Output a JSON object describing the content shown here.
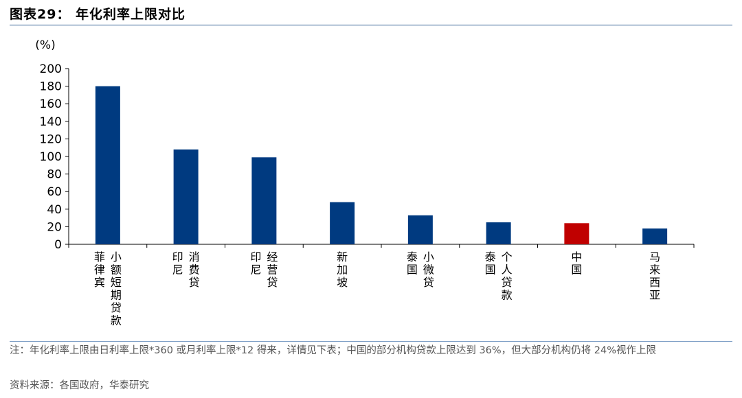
{
  "header": {
    "title": "图表29： 年化利率上限对比"
  },
  "chart_data": {
    "type": "bar",
    "title": "",
    "ylabel": "(%)",
    "xlabel": "",
    "ylim": [
      0,
      200
    ],
    "yticks": [
      0,
      20,
      40,
      60,
      80,
      100,
      120,
      140,
      160,
      180,
      200
    ],
    "grid": false,
    "categories": [
      [
        "小额短期贷款",
        "菲律宾"
      ],
      [
        "消费贷",
        "印尼"
      ],
      [
        "经营贷",
        "印尼"
      ],
      [
        "新加坡"
      ],
      [
        "小微贷",
        "泰国"
      ],
      [
        "个人贷款",
        "泰国"
      ],
      [
        "中国"
      ],
      [
        "马来西亚"
      ]
    ],
    "values": [
      180,
      108,
      99,
      48,
      33,
      25,
      24,
      18
    ],
    "colors": [
      "#003a80",
      "#003a80",
      "#003a80",
      "#003a80",
      "#003a80",
      "#003a80",
      "#c00000",
      "#003a80"
    ]
  },
  "footer": {
    "note": "注：年化利率上限由日利率上限*360 或月利率上限*12 得来，详情见下表；中国的部分机构贷款上限达到 36%，但大部分机构仍将 24%视作上限",
    "source": "资料来源：各国政府，华泰研究"
  }
}
